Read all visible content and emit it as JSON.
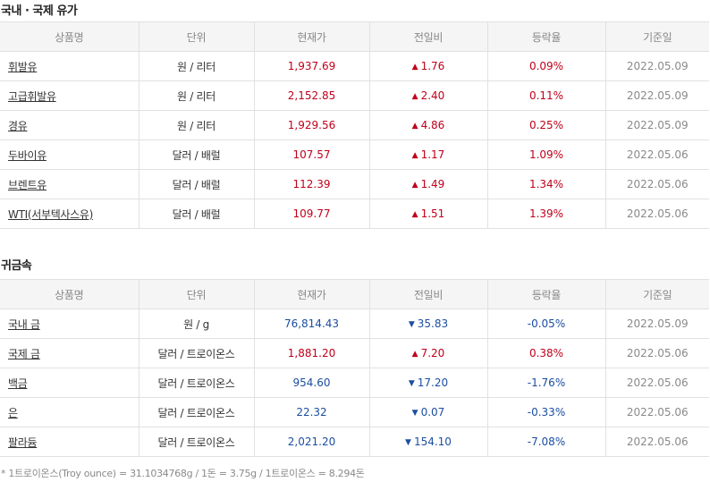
{
  "oil": {
    "title": "국내 · 국제 유가",
    "headers": [
      "상품명",
      "단위",
      "현재가",
      "전일비",
      "등락율",
      "기준일"
    ],
    "rows": [
      {
        "name": "휘발유",
        "unit": "원 / 리터",
        "price": "1,937.69",
        "arrow": "▲",
        "change": "1.76",
        "rate": "0.09%",
        "date": "2022.05.09",
        "dir": "up"
      },
      {
        "name": "고급휘발유",
        "unit": "원 / 리터",
        "price": "2,152.85",
        "arrow": "▲",
        "change": "2.40",
        "rate": "0.11%",
        "date": "2022.05.09",
        "dir": "up"
      },
      {
        "name": "경유",
        "unit": "원 / 리터",
        "price": "1,929.56",
        "arrow": "▲",
        "change": "4.86",
        "rate": "0.25%",
        "date": "2022.05.09",
        "dir": "up"
      },
      {
        "name": "두바이유",
        "unit": "달러 / 배럴",
        "price": "107.57",
        "arrow": "▲",
        "change": "1.17",
        "rate": "1.09%",
        "date": "2022.05.06",
        "dir": "up"
      },
      {
        "name": "브렌트유",
        "unit": "달러 / 배럴",
        "price": "112.39",
        "arrow": "▲",
        "change": "1.49",
        "rate": "1.34%",
        "date": "2022.05.06",
        "dir": "up"
      },
      {
        "name": "WTI(서부텍사스유)",
        "unit": "달러 / 배럴",
        "price": "109.77",
        "arrow": "▲",
        "change": "1.51",
        "rate": "1.39%",
        "date": "2022.05.06",
        "dir": "up"
      }
    ]
  },
  "metal": {
    "title": "귀금속",
    "headers": [
      "상품명",
      "단위",
      "현재가",
      "전일비",
      "등락율",
      "기준일"
    ],
    "rows": [
      {
        "name": "국내 금",
        "unit": "원 / g",
        "price": "76,814.43",
        "arrow": "▼",
        "change": "35.83",
        "rate": "-0.05%",
        "date": "2022.05.09",
        "dir": "down"
      },
      {
        "name": "국제 금",
        "unit": "달러 / 트로이온스",
        "price": "1,881.20",
        "arrow": "▲",
        "change": "7.20",
        "rate": "0.38%",
        "date": "2022.05.06",
        "dir": "up"
      },
      {
        "name": "백금",
        "unit": "달러 / 트로이온스",
        "price": "954.60",
        "arrow": "▼",
        "change": "17.20",
        "rate": "-1.76%",
        "date": "2022.05.06",
        "dir": "down"
      },
      {
        "name": "은",
        "unit": "달러 / 트로이온스",
        "price": "22.32",
        "arrow": "▼",
        "change": "0.07",
        "rate": "-0.33%",
        "date": "2022.05.06",
        "dir": "down"
      },
      {
        "name": "팔라듐",
        "unit": "달러 / 트로이온스",
        "price": "2,021.20",
        "arrow": "▼",
        "change": "154.10",
        "rate": "-7.08%",
        "date": "2022.05.06",
        "dir": "down"
      }
    ]
  },
  "colors": {
    "up": "#c0001b",
    "down": "#1c4ea1",
    "date": "#8a8a8a",
    "header_bg": "#f5f5f5",
    "border": "#e1e1e1"
  },
  "footnote": "* 1트로이온스(Troy ounce) = 31.1034768g / 1돈 = 3.75g / 1트로이온스 = 8.294돈"
}
